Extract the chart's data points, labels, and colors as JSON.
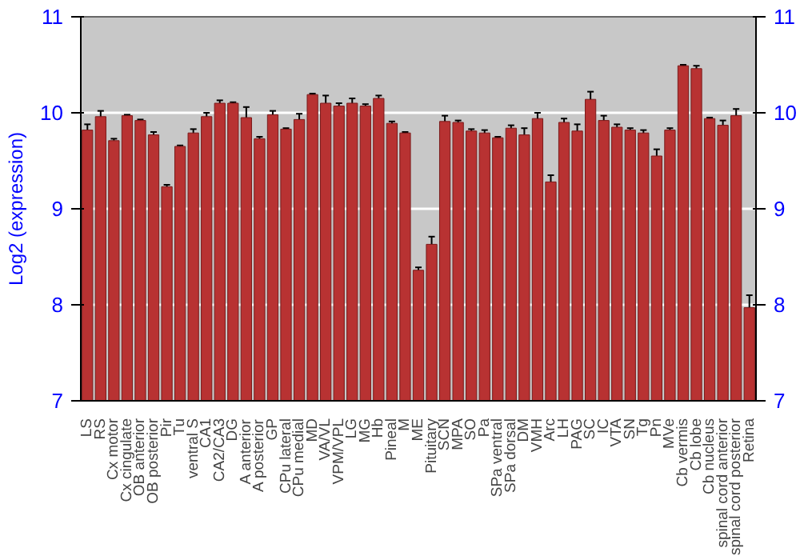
{
  "chart_data": {
    "type": "bar",
    "ylabel": "Log2 (expression)",
    "categories": [
      "LS",
      "RS",
      "Cx motor",
      "Cx cingulate",
      "OB anterior",
      "OB posterior",
      "Pir",
      "Tu",
      "ventral S",
      "CA1",
      "CA2/CA3",
      "DG",
      "A anterior",
      "A posterior",
      "GP",
      "CPu lateral",
      "CPu medial",
      "MD",
      "VA/VL",
      "VPM/VPL",
      "LG",
      "MG",
      "Hb",
      "Pineal",
      "M",
      "ME",
      "Pituitary",
      "SCN",
      "MPA",
      "SO",
      "Pa",
      "SPa ventral",
      "SPa dorsal",
      "DM",
      "VMH",
      "Arc",
      "LH",
      "PAG",
      "SC",
      "IC",
      "VTA",
      "SN",
      "Tg",
      "Pn",
      "MVe",
      "Cb vermis",
      "Cb lobe",
      "Cb nucleus",
      "spinal cord anterior",
      "spinal cord posterior",
      "Retina"
    ],
    "values": [
      9.82,
      9.96,
      9.71,
      9.97,
      9.92,
      9.77,
      9.23,
      9.65,
      9.79,
      9.96,
      10.1,
      10.1,
      9.95,
      9.73,
      9.98,
      9.83,
      9.93,
      10.19,
      10.1,
      10.07,
      10.1,
      10.07,
      10.15,
      9.89,
      9.79,
      8.36,
      8.63,
      9.91,
      9.9,
      9.81,
      9.79,
      9.74,
      9.84,
      9.77,
      9.94,
      9.28,
      9.9,
      9.81,
      10.14,
      9.92,
      9.85,
      9.82,
      9.79,
      9.55,
      9.82,
      10.49,
      10.46,
      9.94,
      9.87,
      9.97,
      7.97
    ],
    "errors": [
      0.06,
      0.06,
      0.02,
      0.01,
      0.01,
      0.03,
      0.02,
      0.01,
      0.04,
      0.04,
      0.03,
      0.01,
      0.11,
      0.02,
      0.04,
      0.01,
      0.06,
      0.01,
      0.08,
      0.03,
      0.05,
      0.02,
      0.03,
      0.02,
      0.01,
      0.03,
      0.08,
      0.06,
      0.02,
      0.02,
      0.03,
      0.01,
      0.03,
      0.07,
      0.06,
      0.07,
      0.04,
      0.07,
      0.08,
      0.05,
      0.03,
      0.02,
      0.03,
      0.07,
      0.02,
      0.01,
      0.03,
      0.01,
      0.05,
      0.07,
      0.13
    ],
    "color": "#b83232",
    "ylim": [
      7,
      11
    ],
    "yticks": [
      7,
      8,
      9,
      10,
      11
    ],
    "y2lim": [
      7,
      11
    ],
    "y2ticks": [
      7,
      8,
      9,
      10,
      11
    ],
    "grid": "y"
  }
}
